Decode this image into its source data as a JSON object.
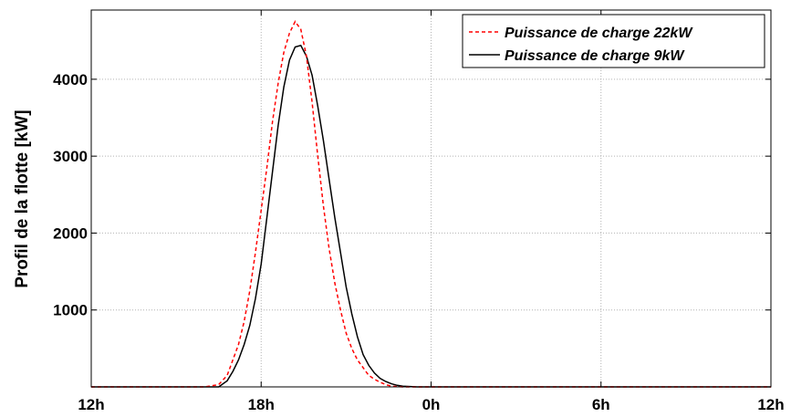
{
  "chart_data": {
    "type": "line",
    "title": "",
    "xlabel": "",
    "ylabel": "Profil de la flotte [kW]",
    "x_ticks": [
      "12h",
      "18h",
      "0h",
      "6h",
      "12h"
    ],
    "x_tick_hours": [
      12,
      18,
      24,
      30,
      36
    ],
    "xlim_hours": [
      12,
      36
    ],
    "y_ticks": [
      1000,
      2000,
      3000,
      4000
    ],
    "ylim": [
      0,
      4900
    ],
    "grid": true,
    "legend_position": "top-right",
    "colors": {
      "series_22kw": "#ff0000",
      "series_9kw": "#000000"
    },
    "series": [
      {
        "name": "Puissance de charge 22kW",
        "style": "dashed",
        "x_hours": [
          16.0,
          16.5,
          16.8,
          17.0,
          17.2,
          17.4,
          17.6,
          17.8,
          18.0,
          18.2,
          18.4,
          18.6,
          18.8,
          19.0,
          19.2,
          19.4,
          19.6,
          19.8,
          20.0,
          20.2,
          20.4,
          20.6,
          20.8,
          21.0,
          21.2,
          21.4,
          21.6,
          21.8,
          22.0,
          22.2,
          22.4,
          22.6,
          23.0
        ],
        "values": [
          0,
          30,
          150,
          350,
          550,
          850,
          1250,
          1750,
          2300,
          2850,
          3450,
          3950,
          4350,
          4600,
          4750,
          4650,
          4300,
          3700,
          3000,
          2350,
          1800,
          1350,
          1000,
          700,
          500,
          350,
          250,
          150,
          100,
          60,
          30,
          10,
          0
        ]
      },
      {
        "name": "Puissance de charge 9kW",
        "style": "solid",
        "x_hours": [
          16.5,
          16.8,
          17.0,
          17.2,
          17.4,
          17.6,
          17.8,
          18.0,
          18.2,
          18.4,
          18.6,
          18.8,
          19.0,
          19.2,
          19.4,
          19.6,
          19.8,
          20.0,
          20.2,
          20.4,
          20.6,
          20.8,
          21.0,
          21.2,
          21.4,
          21.6,
          21.8,
          22.0,
          22.2,
          22.4,
          22.6,
          22.8,
          23.0,
          23.5
        ],
        "values": [
          0,
          80,
          200,
          350,
          550,
          800,
          1150,
          1600,
          2200,
          2800,
          3400,
          3900,
          4250,
          4420,
          4440,
          4300,
          4050,
          3650,
          3200,
          2700,
          2200,
          1750,
          1300,
          950,
          650,
          420,
          280,
          180,
          110,
          70,
          40,
          20,
          10,
          0
        ]
      }
    ]
  }
}
